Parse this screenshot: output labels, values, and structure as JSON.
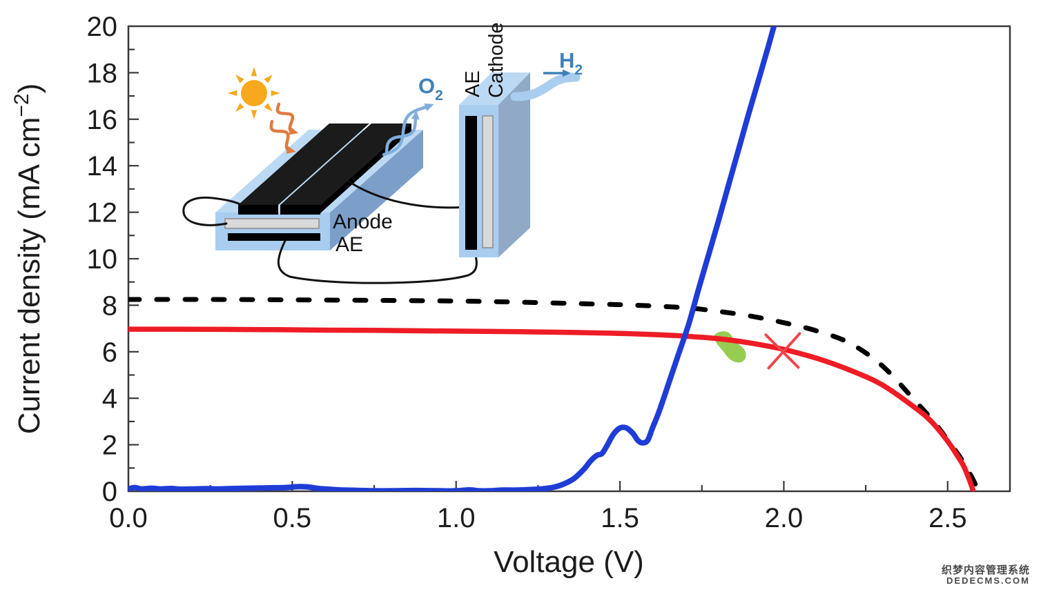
{
  "chart_data": {
    "type": "line",
    "title": "",
    "xlabel": "Voltage (V)",
    "ylabel": "Current density (mA cm−2)",
    "ylabel_parts": {
      "pre": "Current density (mA cm",
      "sup": "−2",
      "post": ")"
    },
    "xlim": [
      0,
      2.69
    ],
    "ylim": [
      0,
      20
    ],
    "grid": false,
    "legend": null,
    "x_major_ticks": [
      0.0,
      0.5,
      1.0,
      1.5,
      2.0,
      2.5
    ],
    "x_tick_labels": [
      "0.0",
      "0.5",
      "1.0",
      "1.5",
      "2.0",
      "2.5"
    ],
    "x_minor_ticks": [
      0.25,
      0.75,
      1.25,
      1.75,
      2.25
    ],
    "y_major_ticks": [
      0,
      2,
      4,
      6,
      8,
      10,
      12,
      14,
      16,
      18,
      20
    ],
    "y_tick_labels": [
      "0",
      "2",
      "4",
      "6",
      "8",
      "10",
      "12",
      "14",
      "16",
      "18",
      "20"
    ],
    "y_minor_ticks": [
      1,
      3,
      5,
      7,
      9,
      11,
      13,
      15,
      17,
      19
    ],
    "series": [
      {
        "name": "electrolyser-load-curve",
        "color": "#1F3DD6",
        "style": "solid",
        "width": 8,
        "points": [
          [
            0.0,
            0.1
          ],
          [
            0.02,
            0.16
          ],
          [
            0.04,
            0.1
          ],
          [
            0.07,
            0.13
          ],
          [
            0.1,
            0.1
          ],
          [
            0.13,
            0.12
          ],
          [
            0.16,
            0.09
          ],
          [
            0.2,
            0.1
          ],
          [
            0.24,
            0.11
          ],
          [
            0.28,
            0.1
          ],
          [
            0.32,
            0.12
          ],
          [
            0.36,
            0.13
          ],
          [
            0.4,
            0.14
          ],
          [
            0.44,
            0.15
          ],
          [
            0.48,
            0.16
          ],
          [
            0.52,
            0.2
          ],
          [
            0.55,
            0.18
          ],
          [
            0.58,
            0.12
          ],
          [
            0.62,
            0.08
          ],
          [
            0.66,
            0.05
          ],
          [
            0.7,
            0.04
          ],
          [
            0.75,
            0.02
          ],
          [
            0.8,
            0.02
          ],
          [
            0.85,
            0.03
          ],
          [
            0.9,
            0.03
          ],
          [
            0.95,
            0.02
          ],
          [
            1.0,
            0.02
          ],
          [
            1.04,
            0.06
          ],
          [
            1.07,
            0.02
          ],
          [
            1.1,
            0.02
          ],
          [
            1.14,
            0.05
          ],
          [
            1.18,
            0.05
          ],
          [
            1.22,
            0.07
          ],
          [
            1.26,
            0.1
          ],
          [
            1.3,
            0.18
          ],
          [
            1.33,
            0.32
          ],
          [
            1.36,
            0.55
          ],
          [
            1.39,
            0.95
          ],
          [
            1.41,
            1.3
          ],
          [
            1.43,
            1.55
          ],
          [
            1.445,
            1.62
          ],
          [
            1.46,
            1.95
          ],
          [
            1.48,
            2.45
          ],
          [
            1.5,
            2.72
          ],
          [
            1.52,
            2.72
          ],
          [
            1.54,
            2.48
          ],
          [
            1.555,
            2.18
          ],
          [
            1.57,
            2.08
          ],
          [
            1.585,
            2.2
          ],
          [
            1.6,
            2.75
          ],
          [
            1.62,
            3.45
          ],
          [
            1.65,
            4.7
          ],
          [
            1.68,
            5.95
          ],
          [
            1.71,
            7.2
          ],
          [
            1.74,
            8.7
          ],
          [
            1.77,
            10.15
          ],
          [
            1.8,
            11.6
          ],
          [
            1.83,
            13.1
          ],
          [
            1.86,
            14.6
          ],
          [
            1.89,
            16.1
          ],
          [
            1.92,
            17.55
          ],
          [
            1.95,
            19.0
          ],
          [
            1.97,
            20.0
          ],
          [
            1.98,
            20.4
          ]
        ]
      },
      {
        "name": "solar-cell-jv-measured",
        "color": "#EE1C25",
        "style": "solid",
        "width": 7.5,
        "points": [
          [
            0.0,
            6.97
          ],
          [
            0.15,
            6.97
          ],
          [
            0.3,
            6.96
          ],
          [
            0.45,
            6.95
          ],
          [
            0.6,
            6.93
          ],
          [
            0.75,
            6.92
          ],
          [
            0.9,
            6.9
          ],
          [
            1.05,
            6.88
          ],
          [
            1.2,
            6.86
          ],
          [
            1.35,
            6.83
          ],
          [
            1.5,
            6.79
          ],
          [
            1.6,
            6.74
          ],
          [
            1.7,
            6.67
          ],
          [
            1.8,
            6.56
          ],
          [
            1.9,
            6.37
          ],
          [
            2.0,
            6.1
          ],
          [
            2.1,
            5.72
          ],
          [
            2.2,
            5.22
          ],
          [
            2.3,
            4.58
          ],
          [
            2.4,
            3.6
          ],
          [
            2.45,
            3.0
          ],
          [
            2.5,
            2.15
          ],
          [
            2.53,
            1.52
          ],
          [
            2.55,
            1.05
          ],
          [
            2.57,
            0.35
          ],
          [
            2.578,
            0.0
          ]
        ]
      },
      {
        "name": "solar-cell-jv-ideal-dashed",
        "color": "#000000",
        "style": "dashed",
        "width": 7,
        "points": [
          [
            0.0,
            8.25
          ],
          [
            0.25,
            8.25
          ],
          [
            0.5,
            8.23
          ],
          [
            0.75,
            8.21
          ],
          [
            1.0,
            8.18
          ],
          [
            1.2,
            8.13
          ],
          [
            1.4,
            8.06
          ],
          [
            1.55,
            8.0
          ],
          [
            1.7,
            7.89
          ],
          [
            1.8,
            7.74
          ],
          [
            1.9,
            7.53
          ],
          [
            2.0,
            7.25
          ],
          [
            2.1,
            6.9
          ],
          [
            2.2,
            6.38
          ],
          [
            2.3,
            5.4
          ],
          [
            2.4,
            3.9
          ],
          [
            2.46,
            2.95
          ],
          [
            2.5,
            2.2
          ],
          [
            2.54,
            1.42
          ],
          [
            2.57,
            0.7
          ],
          [
            2.595,
            0.0
          ]
        ]
      }
    ],
    "annotations": {
      "x_marker": {
        "x": 2.0,
        "y": 6.1,
        "color": "#F2444C",
        "label": "operating-point-x"
      },
      "green_blob": {
        "x": 1.835,
        "y": 6.2,
        "color": "#8CC63F",
        "label": "operating-region-blob"
      }
    }
  },
  "inset": {
    "labels": {
      "anode": "Anode",
      "anode_ae": "AE",
      "cathode_ae": "AE",
      "cathode": "Cathode",
      "oxygen": {
        "main": "O",
        "sub": "2"
      },
      "hydrogen": {
        "main": "H",
        "sub": "2"
      }
    },
    "colors": {
      "device_front": "#A9CDEF",
      "device_top": "#BCD9F4",
      "device_side": "#7C9FC9",
      "device_side2": "#8FA9C6",
      "layer_gray": "#D9D9D9",
      "sun": "#F7A81D",
      "sun_arrow_orange": "#E07A3F",
      "gas_arrow_blue": "#7FAEDC",
      "gas_text_blue": "#3F80B8"
    }
  },
  "watermark": {
    "line1": "织梦内容管理系统",
    "line2": "DEDECMS.COM"
  }
}
